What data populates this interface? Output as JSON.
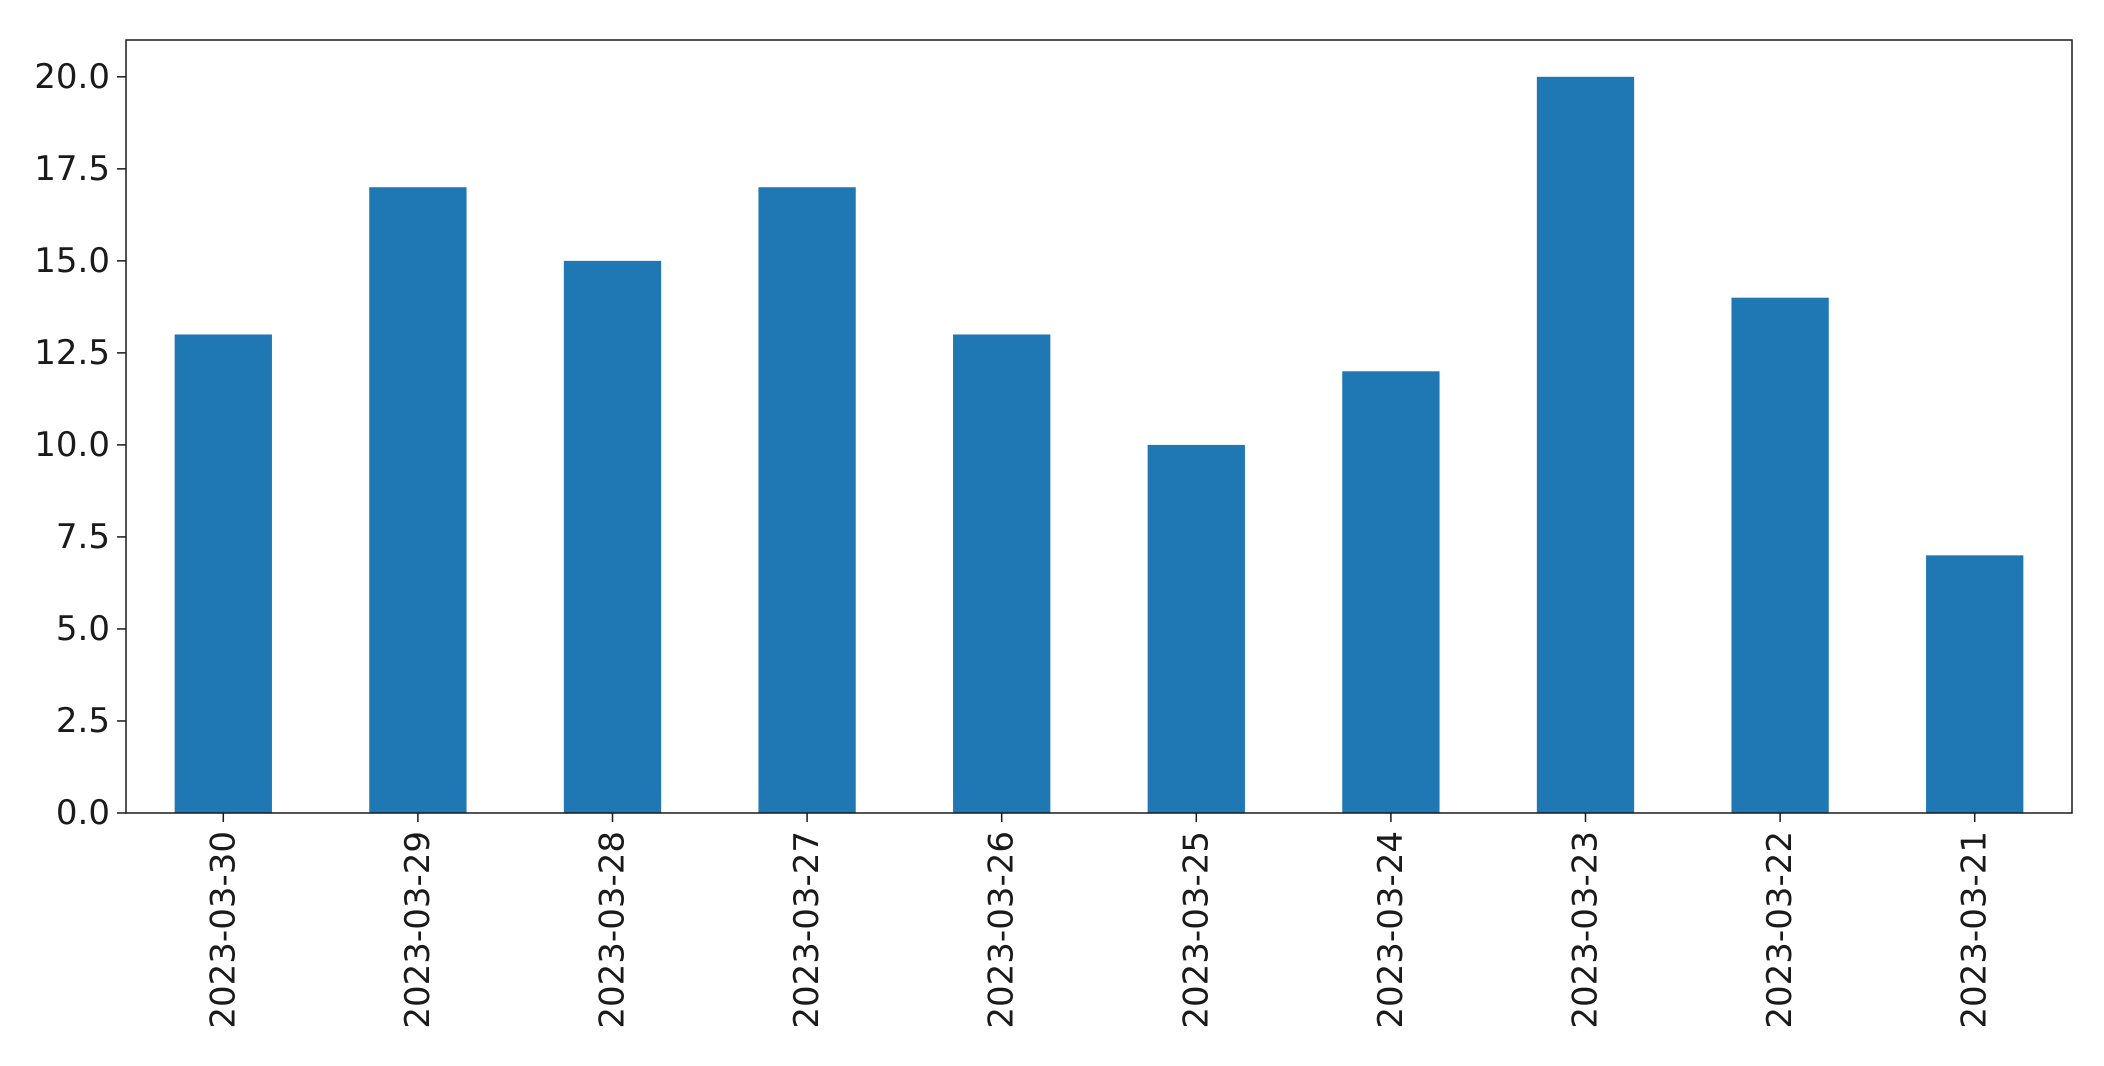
{
  "chart_data": {
    "type": "bar",
    "title": "",
    "xlabel": "",
    "ylabel": "",
    "categories": [
      "2023-03-30",
      "2023-03-29",
      "2023-03-28",
      "2023-03-27",
      "2023-03-26",
      "2023-03-25",
      "2023-03-24",
      "2023-03-23",
      "2023-03-22",
      "2023-03-21"
    ],
    "values": [
      13,
      17,
      15,
      17,
      13,
      10,
      12,
      20,
      14,
      7
    ],
    "ylim": [
      0,
      21
    ],
    "yticks": [
      "0.0",
      "2.5",
      "5.0",
      "7.5",
      "10.0",
      "12.5",
      "15.0",
      "17.5",
      "20.0"
    ],
    "grid": false,
    "legend": "none",
    "bar_color": "#1f77b4"
  }
}
